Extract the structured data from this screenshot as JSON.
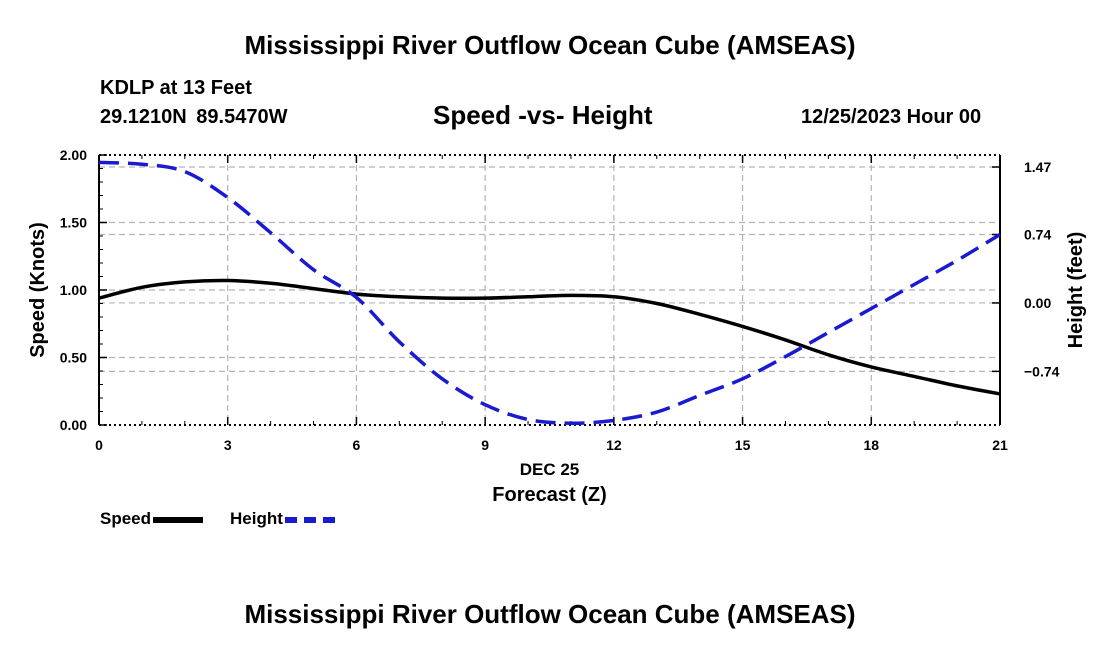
{
  "header": {
    "title": "Mississippi River Outflow Ocean Cube (AMSEAS)",
    "station": "KDLP at 13 Feet",
    "coords": "29.1210N  89.5470W",
    "subtitle": "Speed -vs- Height",
    "datetime": "12/25/2023 Hour 00"
  },
  "footer": {
    "title": "Mississippi River Outflow Ocean Cube (AMSEAS)"
  },
  "legend": {
    "speed_label": "Speed",
    "height_label": "Height"
  },
  "colors": {
    "speed": "#000000",
    "height": "#1a1ad0",
    "grid": "#b4b4b4"
  },
  "chart_data": {
    "type": "line",
    "title": "Speed -vs- Height",
    "xlabel": "Forecast (Z)",
    "xdate_label": "DEC 25",
    "ylabel": "Speed (Knots)",
    "y2label": "Height (feet)",
    "xlim": [
      0,
      21
    ],
    "ylim": [
      0,
      2
    ],
    "y2lim": [
      -1.32,
      1.6
    ],
    "x_ticks": [
      0,
      3,
      6,
      9,
      12,
      15,
      18,
      21
    ],
    "x_tick_labels": [
      "0",
      "3",
      "6",
      "9",
      "12",
      "15",
      "18",
      "21"
    ],
    "y_ticks": [
      0,
      0.5,
      1.0,
      1.5,
      2.0
    ],
    "y_tick_labels": [
      "0.00",
      "0.50",
      "1.00",
      "1.50",
      "2.00"
    ],
    "y2_ticks": [
      1.47,
      0.74,
      0.0,
      -0.74
    ],
    "y2_tick_labels": [
      "1.47",
      "0.74",
      "0.00",
      "−0.74"
    ],
    "grid": true,
    "series": [
      {
        "name": "Speed",
        "axis": "left",
        "style": "solid",
        "x": [
          0,
          1,
          2,
          3,
          4,
          5,
          6,
          7,
          8,
          9,
          10,
          11,
          12,
          13,
          14,
          15,
          16,
          17,
          18,
          19,
          20,
          21
        ],
        "values": [
          0.94,
          1.02,
          1.06,
          1.07,
          1.05,
          1.01,
          0.97,
          0.95,
          0.94,
          0.94,
          0.95,
          0.96,
          0.95,
          0.9,
          0.82,
          0.73,
          0.63,
          0.52,
          0.43,
          0.36,
          0.29,
          0.23
        ]
      },
      {
        "name": "Height",
        "axis": "right",
        "style": "dashed",
        "x": [
          0,
          1,
          2,
          3,
          4,
          5,
          6,
          7,
          8,
          9,
          10,
          11,
          12,
          13,
          14,
          15,
          16,
          17,
          18,
          19,
          20,
          21
        ],
        "values": [
          1.52,
          1.5,
          1.42,
          1.14,
          0.76,
          0.36,
          0.06,
          -0.42,
          -0.82,
          -1.1,
          -1.26,
          -1.3,
          -1.27,
          -1.18,
          -1.0,
          -0.82,
          -0.58,
          -0.32,
          -0.06,
          0.2,
          0.46,
          0.74
        ]
      }
    ]
  }
}
